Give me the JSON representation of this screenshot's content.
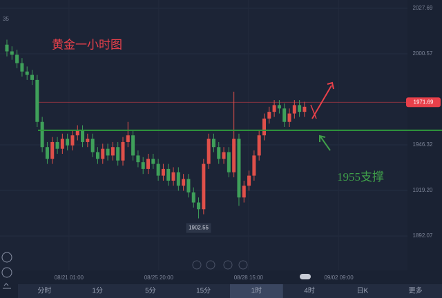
{
  "chart_data": {
    "type": "candlestick",
    "title": "黄金一小时图",
    "annotation": "1955支撑",
    "corner_label": "35",
    "open": [
      2006,
      2002,
      2000,
      1995,
      1990,
      1988,
      1985,
      1960,
      1945,
      1938,
      1948,
      1944,
      1950,
      1946,
      1952,
      1955,
      1948,
      1950,
      1942,
      1938,
      1944,
      1940,
      1945,
      1937,
      1948,
      1952,
      1940,
      1936,
      1932,
      1938,
      1935,
      1928,
      1932,
      1925,
      1930,
      1922,
      1926,
      1918,
      1912,
      1908,
      1935,
      1950,
      1945,
      1938,
      1942,
      1930,
      1950,
      1915,
      1922,
      1928,
      1940,
      1952,
      1962,
      1966,
      1970,
      1968,
      1960,
      1965,
      1970,
      1966
    ],
    "high": [
      2009,
      2005,
      2003,
      1998,
      1993,
      1991,
      1988,
      1963,
      1948,
      1951,
      1951,
      1953,
      1953,
      1955,
      1958,
      1958,
      1953,
      1953,
      1945,
      1947,
      1947,
      1948,
      1948,
      1951,
      1960,
      1955,
      1943,
      1939,
      1941,
      1941,
      1938,
      1935,
      1935,
      1933,
      1933,
      1929,
      1929,
      1921,
      1915,
      1938,
      1953,
      1953,
      1948,
      1945,
      1945,
      1978,
      1953,
      1925,
      1931,
      1943,
      1955,
      1965,
      1969,
      1973,
      1973,
      1971,
      1968,
      1973,
      1973,
      1972
    ],
    "low": [
      1999,
      1997,
      1992,
      1987,
      1985,
      1982,
      1957,
      1942,
      1935,
      1935,
      1941,
      1941,
      1943,
      1943,
      1949,
      1945,
      1945,
      1939,
      1935,
      1935,
      1937,
      1937,
      1934,
      1934,
      1945,
      1937,
      1933,
      1929,
      1929,
      1932,
      1925,
      1925,
      1922,
      1922,
      1919,
      1919,
      1915,
      1909,
      1902.55,
      1905,
      1932,
      1942,
      1935,
      1935,
      1927,
      1927,
      1910,
      1912,
      1919,
      1925,
      1937,
      1949,
      1959,
      1963,
      1965,
      1957,
      1957,
      1962,
      1963,
      1963
    ],
    "close": [
      2002,
      2000,
      1995,
      1990,
      1988,
      1985,
      1960,
      1945,
      1938,
      1948,
      1944,
      1950,
      1946,
      1952,
      1955,
      1948,
      1950,
      1942,
      1938,
      1944,
      1940,
      1945,
      1937,
      1948,
      1952,
      1940,
      1936,
      1932,
      1938,
      1935,
      1928,
      1932,
      1925,
      1930,
      1922,
      1926,
      1918,
      1912,
      1908,
      1935,
      1950,
      1945,
      1938,
      1942,
      1930,
      1950,
      1915,
      1922,
      1928,
      1940,
      1952,
      1962,
      1966,
      1970,
      1968,
      1960,
      1965,
      1970,
      1966,
      1969
    ],
    "up_color": "#e0504a",
    "down_color": "#3fa05a",
    "low_label_index": 38,
    "last_price": 1971.69,
    "last_price_color": "#e8404a",
    "support_line": 1955,
    "support_color": "#2f9a3c",
    "ylim": [
      1880.6,
      2032.6
    ],
    "yticks": [
      1892.07,
      {
        "value": 1919.2,
        "label": "1919.20"
      },
      1946.32,
      2000.57,
      2027.69
    ],
    "xlim": [
      0,
      79
    ],
    "xticks": [
      {
        "value": 12.3,
        "label": "08/21 01:00"
      },
      {
        "value": 30.1,
        "label": "08/25 20:00"
      },
      {
        "value": 47.9,
        "label": "08/28 15:00"
      },
      {
        "value": 65.8,
        "label": "09/02 09:00"
      }
    ],
    "toolbar": [
      "分时",
      "1分",
      "5分",
      "15分",
      "1时",
      "4时",
      "日K",
      "更多"
    ],
    "toolbar_selected": 4
  }
}
